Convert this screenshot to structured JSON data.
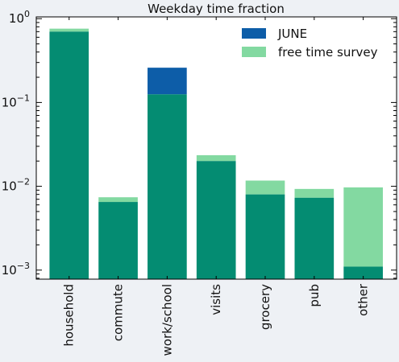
{
  "chart_data": {
    "type": "bar",
    "title": "Weekday time fraction",
    "xlabel": "",
    "ylabel": "",
    "yscale": "log",
    "ylim": [
      0.00078,
      1.05
    ],
    "categories": [
      "household",
      "commute",
      "work/school",
      "visits",
      "grocery",
      "pub",
      "other"
    ],
    "yticks": [
      {
        "value": 0.001,
        "base": "10",
        "exp": "−3"
      },
      {
        "value": 0.01,
        "base": "10",
        "exp": "−2"
      },
      {
        "value": 0.1,
        "base": "10",
        "exp": "−1"
      },
      {
        "value": 1,
        "base": "10",
        "exp": "0"
      }
    ],
    "series": [
      {
        "name": "JUNE",
        "color": "#0d5da8",
        "values": [
          0.7,
          0.0065,
          0.26,
          0.02,
          0.008,
          0.0073,
          0.0011
        ]
      },
      {
        "name": "free time survey",
        "color": "#83d9a1",
        "values": [
          0.76,
          0.0074,
          0.125,
          0.0235,
          0.0117,
          0.0093,
          0.0097
        ]
      }
    ],
    "overlap_color": "#048c72",
    "legend_position": "top-right",
    "grid": false
  }
}
